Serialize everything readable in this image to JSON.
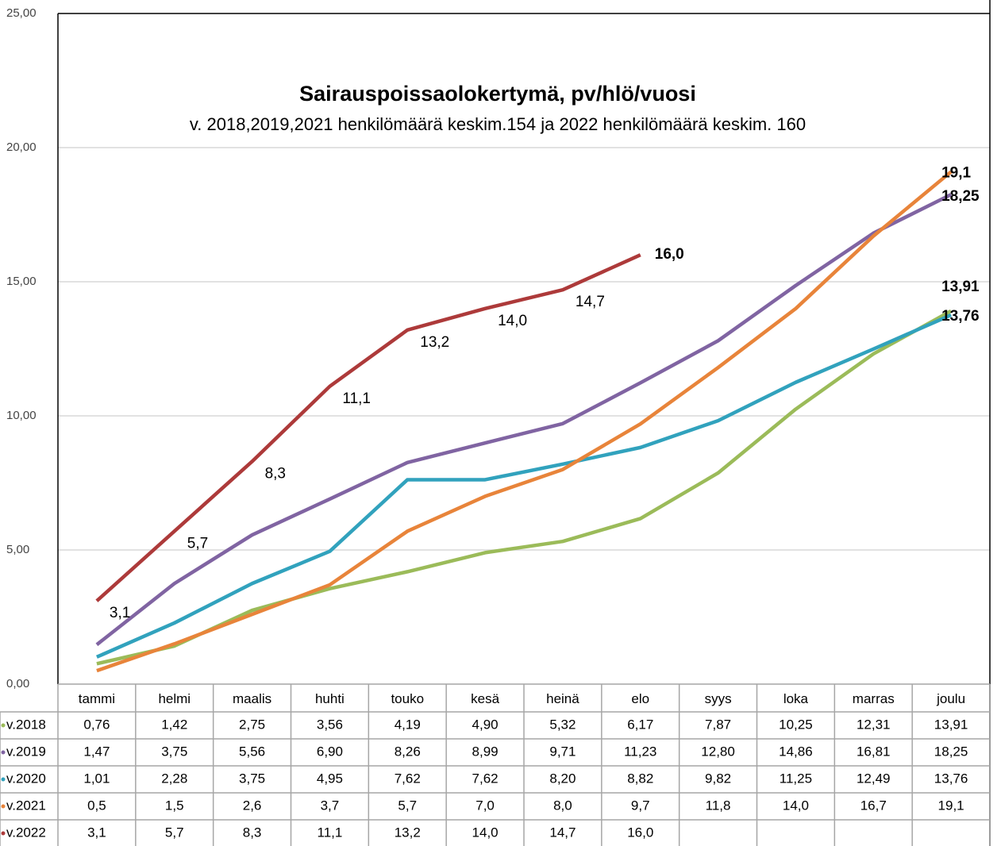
{
  "chart_data": {
    "type": "line",
    "title": "Sairauspoissaolokertymä,  pv/hlö/vuosi",
    "subtitle": "v. 2018,2019,2021 henkilömäärä  keskim.154 ja 2022 henkilömäärä  keskim.  160",
    "categories": [
      "tammi",
      "helmi",
      "maalis",
      "huhti",
      "touko",
      "kesä",
      "heinä",
      "elo",
      "syys",
      "loka",
      "marras",
      "joulu"
    ],
    "ylim": [
      0,
      25
    ],
    "yticks": [
      {
        "value": 0,
        "label": "0,00"
      },
      {
        "value": 5,
        "label": "5,00"
      },
      {
        "value": 10,
        "label": "10,00"
      },
      {
        "value": 15,
        "label": "15,00"
      },
      {
        "value": 20,
        "label": "20,00"
      },
      {
        "value": 25,
        "label": "25,00"
      }
    ],
    "grid": true,
    "series": [
      {
        "name": "v.2018",
        "color": "#9bbb59",
        "values": [
          0.76,
          1.42,
          2.75,
          3.56,
          4.19,
          4.9,
          5.32,
          6.17,
          7.87,
          10.25,
          12.31,
          13.91
        ],
        "value_labels": [
          "0,76",
          "1,42",
          "2,75",
          "3,56",
          "4,19",
          "4,90",
          "5,32",
          "6,17",
          "7,87",
          "10,25",
          "12,31",
          "13,91"
        ]
      },
      {
        "name": "v.2019",
        "color": "#8064a2",
        "values": [
          1.47,
          3.75,
          5.56,
          6.9,
          8.26,
          8.99,
          9.71,
          11.23,
          12.8,
          14.86,
          16.81,
          18.25
        ],
        "value_labels": [
          "1,47",
          "3,75",
          "5,56",
          "6,90",
          "8,26",
          "8,99",
          "9,71",
          "11,23",
          "12,80",
          "14,86",
          "16,81",
          "18,25"
        ]
      },
      {
        "name": "v.2020",
        "color": "#31a2bd",
        "values": [
          1.01,
          2.28,
          3.75,
          4.95,
          7.62,
          7.62,
          8.2,
          8.82,
          9.82,
          11.25,
          12.49,
          13.76
        ],
        "value_labels": [
          "1,01",
          "2,28",
          "3,75",
          "4,95",
          "7,62",
          "7,62",
          "8,20",
          "8,82",
          "9,82",
          "11,25",
          "12,49",
          "13,76"
        ]
      },
      {
        "name": "v.2021",
        "color": "#e8843a",
        "values": [
          0.5,
          1.5,
          2.6,
          3.7,
          5.7,
          7.0,
          8.0,
          9.7,
          11.8,
          14.0,
          16.7,
          19.1
        ],
        "value_labels": [
          "0,5",
          "1,5",
          "2,6",
          "3,7",
          "5,7",
          "7,0",
          "8,0",
          "9,7",
          "11,8",
          "14,0",
          "16,7",
          "19,1"
        ]
      },
      {
        "name": "v.2022",
        "color": "#ad3a3a",
        "values": [
          3.1,
          5.7,
          8.3,
          11.1,
          13.2,
          14.0,
          14.7,
          16.0,
          null,
          null,
          null,
          null
        ],
        "value_labels": [
          "3,1",
          "5,7",
          "8,3",
          "11,1",
          "13,2",
          "14,0",
          "14,7",
          "16,0",
          null,
          null,
          null,
          null
        ]
      }
    ]
  }
}
